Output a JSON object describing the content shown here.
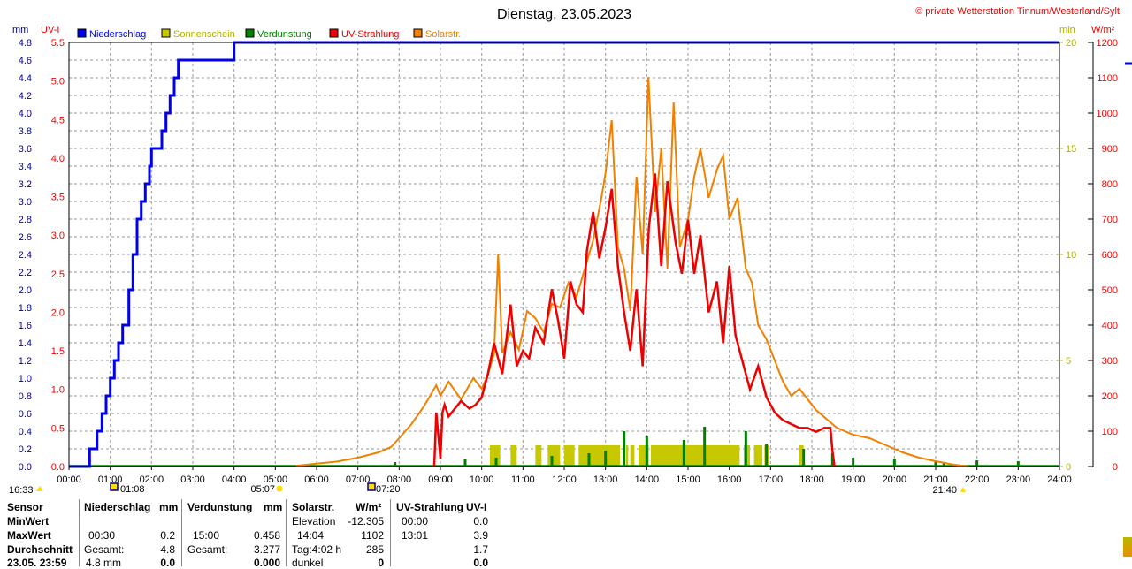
{
  "title": "Dienstag, 23.05.2023",
  "copyright": "© private Wetterstation Tinnum/Westerland/Sylt",
  "axes": {
    "left_outer_label": "mm",
    "left_inner_label": "UV-I",
    "right_inner_label": "min",
    "right_outer_label": "W/m²",
    "mm_ticks": [
      "4.8",
      "4.6",
      "4.4",
      "4.2",
      "4.0",
      "3.8",
      "3.6",
      "3.4",
      "3.2",
      "3.0",
      "2.8",
      "2.6",
      "2.4",
      "2.2",
      "2.0",
      "1.8",
      "1.6",
      "1.4",
      "1.2",
      "1.0",
      "0.8",
      "0.6",
      "0.4",
      "0.2",
      "0.0"
    ],
    "uv_ticks": [
      "5.5",
      "5.0",
      "4.5",
      "4.0",
      "3.5",
      "3.0",
      "2.5",
      "2.0",
      "1.5",
      "1.0",
      "0.5",
      "0.0"
    ],
    "min_ticks": [
      "20",
      "15",
      "10",
      "5",
      "0"
    ],
    "wm2_ticks": [
      "1200",
      "1100",
      "1000",
      "900",
      "800",
      "700",
      "600",
      "500",
      "400",
      "300",
      "200",
      "100",
      "0"
    ],
    "time_ticks": [
      "00:00",
      "01:00",
      "02:00",
      "03:00",
      "04:00",
      "05:00",
      "06:00",
      "07:00",
      "08:00",
      "09:00",
      "10:00",
      "11:00",
      "12:00",
      "13:00",
      "14:00",
      "15:00",
      "16:00",
      "17:00",
      "18:00",
      "19:00",
      "20:00",
      "21:00",
      "22:00",
      "23:00",
      "24:00"
    ]
  },
  "legend": [
    {
      "name": "Niederschlag",
      "color": "#0000ee"
    },
    {
      "name": "Sonnenschein",
      "color": "#c8c800"
    },
    {
      "name": "Verdunstung",
      "color": "#008000"
    },
    {
      "name": "UV-Strahlung",
      "color": "#ee0000"
    },
    {
      "name": "Solarstr.",
      "color": "#f08000"
    }
  ],
  "sun_markers": {
    "sunset_prev": "16:33",
    "moonrise": "01:08",
    "sunrise": "05:07",
    "moonset": "07:20",
    "sunset": "21:40"
  },
  "chart_data": {
    "type": "line",
    "x_unit": "hours",
    "xlim": [
      0,
      24
    ],
    "series": [
      {
        "name": "Niederschlag",
        "unit": "mm",
        "ylim": [
          0,
          4.8
        ],
        "x": [
          0,
          0.45,
          0.5,
          0.67,
          0.68,
          0.8,
          0.9,
          1.0,
          1.1,
          1.2,
          1.3,
          1.45,
          1.55,
          1.65,
          1.75,
          1.85,
          1.95,
          2.0,
          2.25,
          2.35,
          2.45,
          2.55,
          2.65,
          2.8,
          3.0,
          3.95,
          4.0,
          24
        ],
        "values": [
          0,
          0,
          0.2,
          0.2,
          0.4,
          0.6,
          0.8,
          1.0,
          1.2,
          1.4,
          1.6,
          2.0,
          2.4,
          2.8,
          3.0,
          3.2,
          3.4,
          3.6,
          3.8,
          4.0,
          4.2,
          4.4,
          4.6,
          4.6,
          4.6,
          4.6,
          4.8,
          4.8
        ]
      },
      {
        "name": "Sonnenschein",
        "unit": "min",
        "ylim": [
          0,
          20
        ],
        "intervals": [
          [
            10.2,
            10.45
          ],
          [
            10.7,
            10.85
          ],
          [
            11.3,
            11.45
          ],
          [
            11.6,
            11.9
          ],
          [
            12.0,
            12.25
          ],
          [
            12.35,
            13.35
          ],
          [
            13.5,
            13.55
          ],
          [
            13.6,
            13.7
          ],
          [
            13.8,
            14.05
          ],
          [
            14.1,
            16.25
          ],
          [
            16.35,
            16.5
          ],
          [
            16.6,
            16.8
          ],
          [
            16.85,
            16.95
          ],
          [
            17.7,
            17.8
          ]
        ],
        "value": 1
      },
      {
        "name": "Verdunstung",
        "unit": "mm",
        "spikes": [
          [
            7.9,
            0.05
          ],
          [
            9.6,
            0.08
          ],
          [
            10.35,
            0.1
          ],
          [
            11.7,
            0.12
          ],
          [
            12.6,
            0.15
          ],
          [
            13.0,
            0.18
          ],
          [
            13.45,
            0.4
          ],
          [
            14.0,
            0.35
          ],
          [
            14.9,
            0.3
          ],
          [
            15.4,
            0.45
          ],
          [
            16.4,
            0.4
          ],
          [
            16.9,
            0.25
          ],
          [
            17.8,
            0.2
          ],
          [
            18.5,
            0.15
          ],
          [
            19.0,
            0.1
          ],
          [
            20.0,
            0.08
          ],
          [
            21.0,
            0.06
          ],
          [
            21.2,
            0.05
          ],
          [
            22.0,
            0.07
          ],
          [
            23.0,
            0.06
          ]
        ]
      },
      {
        "name": "UV-Strahlung",
        "unit": "UV-I",
        "ylim": [
          0,
          5.5
        ],
        "x": [
          8.85,
          8.9,
          9.0,
          9.05,
          9.1,
          9.2,
          9.35,
          9.5,
          9.7,
          9.85,
          10.0,
          10.15,
          10.3,
          10.5,
          10.7,
          10.85,
          11.0,
          11.15,
          11.3,
          11.5,
          11.7,
          11.85,
          12.0,
          12.15,
          12.3,
          12.45,
          12.55,
          12.7,
          12.85,
          13.0,
          13.15,
          13.3,
          13.45,
          13.6,
          13.75,
          13.9,
          14.05,
          14.2,
          14.35,
          14.5,
          14.7,
          14.85,
          15.0,
          15.15,
          15.3,
          15.5,
          15.7,
          15.85,
          16.0,
          16.15,
          16.3,
          16.5,
          16.7,
          16.9,
          17.1,
          17.3,
          17.5,
          17.7,
          17.9,
          18.1,
          18.3,
          18.45,
          18.5,
          18.55
        ],
        "values": [
          0.0,
          0.7,
          0.1,
          0.7,
          0.8,
          0.65,
          0.75,
          0.85,
          0.75,
          0.8,
          0.9,
          1.2,
          1.6,
          1.2,
          2.1,
          1.3,
          1.5,
          1.4,
          1.8,
          1.6,
          2.3,
          1.9,
          1.4,
          2.4,
          2.1,
          2.0,
          2.8,
          3.3,
          2.7,
          3.1,
          3.6,
          2.6,
          2.0,
          1.5,
          2.3,
          1.3,
          3.1,
          3.8,
          2.6,
          3.7,
          2.9,
          2.5,
          3.2,
          2.5,
          3.0,
          2.0,
          2.4,
          1.6,
          2.6,
          1.7,
          1.4,
          1.0,
          1.3,
          0.9,
          0.7,
          0.6,
          0.55,
          0.5,
          0.5,
          0.45,
          0.5,
          0.5,
          0.2,
          0.0
        ]
      },
      {
        "name": "Solarstr.",
        "unit": "W/m²",
        "ylim": [
          0,
          1200
        ],
        "x": [
          5.5,
          6.0,
          6.5,
          7.0,
          7.5,
          7.8,
          8.0,
          8.3,
          8.6,
          8.9,
          9.0,
          9.2,
          9.5,
          9.8,
          10.0,
          10.15,
          10.3,
          10.4,
          10.5,
          10.7,
          10.9,
          11.1,
          11.3,
          11.5,
          11.7,
          11.9,
          12.1,
          12.3,
          12.5,
          12.7,
          12.9,
          13.0,
          13.15,
          13.3,
          13.45,
          13.6,
          13.75,
          13.9,
          14.04,
          14.2,
          14.35,
          14.5,
          14.65,
          14.8,
          15.0,
          15.15,
          15.3,
          15.5,
          15.7,
          15.85,
          16.0,
          16.2,
          16.4,
          16.55,
          16.7,
          16.9,
          17.1,
          17.3,
          17.5,
          17.7,
          17.9,
          18.1,
          18.3,
          18.6,
          19.0,
          19.4,
          19.8,
          20.2,
          20.6,
          21.0,
          21.4,
          21.8
        ],
        "values": [
          2,
          8,
          14,
          25,
          40,
          55,
          80,
          120,
          170,
          230,
          200,
          240,
          190,
          250,
          220,
          260,
          320,
          600,
          320,
          380,
          330,
          440,
          420,
          380,
          460,
          450,
          520,
          480,
          560,
          640,
          760,
          830,
          980,
          620,
          560,
          440,
          820,
          600,
          1102,
          720,
          900,
          560,
          1030,
          620,
          700,
          820,
          900,
          760,
          840,
          880,
          700,
          760,
          560,
          520,
          400,
          360,
          300,
          240,
          200,
          220,
          190,
          160,
          140,
          110,
          90,
          80,
          60,
          40,
          25,
          15,
          6,
          0
        ]
      }
    ]
  },
  "stats": {
    "col1": {
      "header": "Sensor",
      "row_min": "MinWert",
      "row_max": "MaxWert",
      "row_avg": "Durchschnitt",
      "row_date": "23.05. 23:59"
    },
    "niederschlag": {
      "header": "Niederschlag",
      "unit": "mm",
      "max_time": "00:30",
      "max_val": "0.2",
      "total_label": "Gesamt:",
      "total_val": "4.8",
      "last_label": "4.8 mm",
      "last_val": "0.0"
    },
    "verdunstung": {
      "header": "Verdunstung",
      "unit": "mm",
      "max_time": "15:00",
      "max_val": "0.458",
      "total_label": "Gesamt:",
      "total_val": "3.277",
      "last_val": "0.000"
    },
    "solar": {
      "header": "Solarstr.",
      "unit": "W/m²",
      "min_label": "Elevation",
      "min_val": "-12.305",
      "max_time": "14:04",
      "max_val": "1102",
      "avg_label": "Tag:4:02 h",
      "avg_val": "285",
      "last_label": "dunkel",
      "last_val": "0"
    },
    "uv": {
      "header": "UV-Strahlung",
      "unit": "UV-I",
      "min_time": "00:00",
      "min_val": "0.0",
      "max_time": "13:01",
      "max_val": "3.9",
      "avg_val": "1.7",
      "last_val": "0.0"
    }
  }
}
